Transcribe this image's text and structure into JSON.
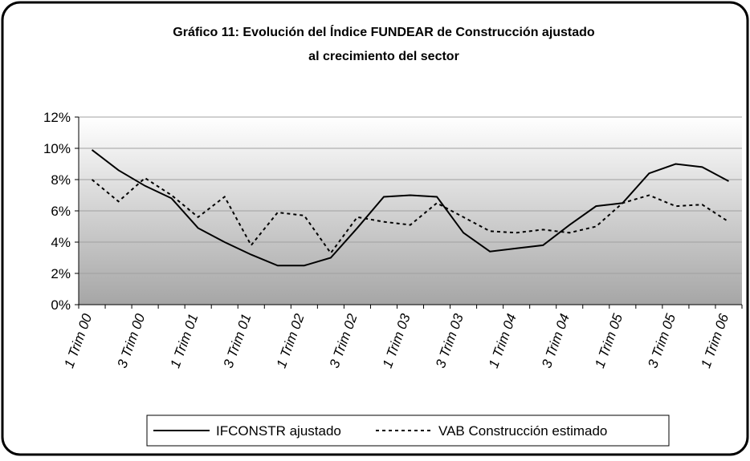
{
  "chart_data": {
    "type": "line",
    "title": "Gráfico 11: Evolución del Índice FUNDEAR de Construcción ajustado",
    "subtitle": "al crecimiento del sector",
    "categories": [
      "1 Trim 00",
      null,
      "3 Trim 00",
      null,
      "1 Trim 01",
      null,
      "3 Trim 01",
      null,
      "1 Trim 02",
      null,
      "3 Trim 02",
      null,
      "1 Trim 03",
      null,
      "3 Trim 03",
      null,
      "1 Trim 04",
      null,
      "3 Trim 04",
      null,
      "1 Trim 05",
      null,
      "3 Trim 05",
      null,
      "1 Trim 06"
    ],
    "series": [
      {
        "name": "IFCONSTR ajustado",
        "color": "#000000",
        "dash": "solid",
        "values": [
          9.9,
          8.6,
          7.6,
          6.8,
          4.9,
          4.0,
          3.2,
          2.5,
          2.5,
          3.0,
          4.9,
          6.9,
          7.0,
          6.9,
          4.6,
          3.4,
          3.6,
          3.8,
          5.1,
          6.3,
          6.5,
          8.4,
          9.0,
          8.8,
          7.9
        ]
      },
      {
        "name": "VAB Construcción estimado",
        "color": "#000000",
        "dash": "dotted",
        "values": [
          8.0,
          6.6,
          8.1,
          7.0,
          5.6,
          6.9,
          3.8,
          5.9,
          5.7,
          3.3,
          5.6,
          5.3,
          5.1,
          6.5,
          5.6,
          4.7,
          4.6,
          4.8,
          4.6,
          5.0,
          6.5,
          7.0,
          6.3,
          6.4,
          5.3
        ]
      }
    ],
    "ylim": [
      0,
      12
    ],
    "yticks": [
      {
        "value": 0,
        "label": "0%"
      },
      {
        "value": 2,
        "label": "2%"
      },
      {
        "value": 4,
        "label": "4%"
      },
      {
        "value": 6,
        "label": "6%"
      },
      {
        "value": 8,
        "label": "8%"
      },
      {
        "value": 10,
        "label": "10%"
      },
      {
        "value": 12,
        "label": "12%"
      }
    ],
    "grid": true,
    "legend": "bottom"
  }
}
